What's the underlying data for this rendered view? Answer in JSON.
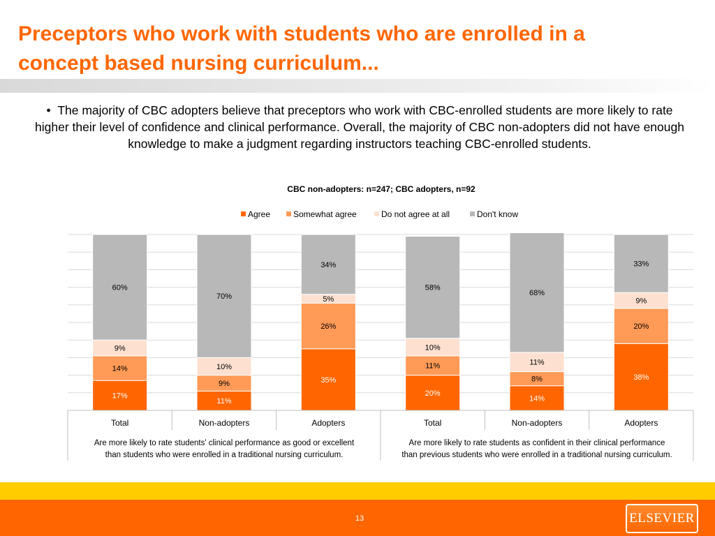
{
  "title": {
    "line1": "Preceptors who work with students who are enrolled in a",
    "line2": "concept based nursing curriculum..."
  },
  "bullet_text": "The majority of CBC adopters believe that preceptors who work with CBC-enrolled students  are more likely to rate higher their level of confidence and clinical performance. Overall, the majority of CBC non-adopters did not have enough knowledge to make a judgment regarding instructors teaching CBC-enrolled students.",
  "page_number": "13",
  "logo_text": "ELSEVIER",
  "chart_data": {
    "type": "bar",
    "stacked": true,
    "percent_stacked": true,
    "title": "CBC non-adopters: n=247; CBC adopters, n=92",
    "legend_position": "top",
    "grid": true,
    "ylim": [
      0,
      100
    ],
    "categories": [
      "Total",
      "Non-adopters",
      "Adopters",
      "Total",
      "Non-adopters",
      "Adopters"
    ],
    "groups": [
      "Are more likely to rate students' clinical performance as good or excellent than students who were enrolled in a traditional nursing curriculum.",
      "Are more likely to rate students as confident in their clinical performance than previous students who were enrolled in a traditional nursing curriculum."
    ],
    "series": [
      {
        "name": "Agree",
        "color": "#ff6600",
        "values": [
          17,
          11,
          35,
          20,
          14,
          38
        ],
        "labels": [
          "17%",
          "11%",
          "35%",
          "20%",
          "14%",
          "38%"
        ]
      },
      {
        "name": "Somewhat agree",
        "color": "#ff9a57",
        "values": [
          14,
          9,
          26,
          11,
          8,
          20
        ],
        "labels": [
          "14%",
          "9%",
          "26%",
          "11%",
          "8%",
          "20%"
        ]
      },
      {
        "name": "Do not agree at all",
        "color": "#fde0d0",
        "values": [
          9,
          10,
          5,
          10,
          11,
          9
        ],
        "labels": [
          "9%",
          "10%",
          "5%",
          "10%",
          "11%",
          "9%"
        ]
      },
      {
        "name": "Don't know",
        "color": "#b8b8b8",
        "values": [
          60,
          70,
          34,
          58,
          68,
          33
        ],
        "labels": [
          "60%",
          "70%",
          "34%",
          "58%",
          "68%",
          "33%"
        ]
      }
    ]
  }
}
